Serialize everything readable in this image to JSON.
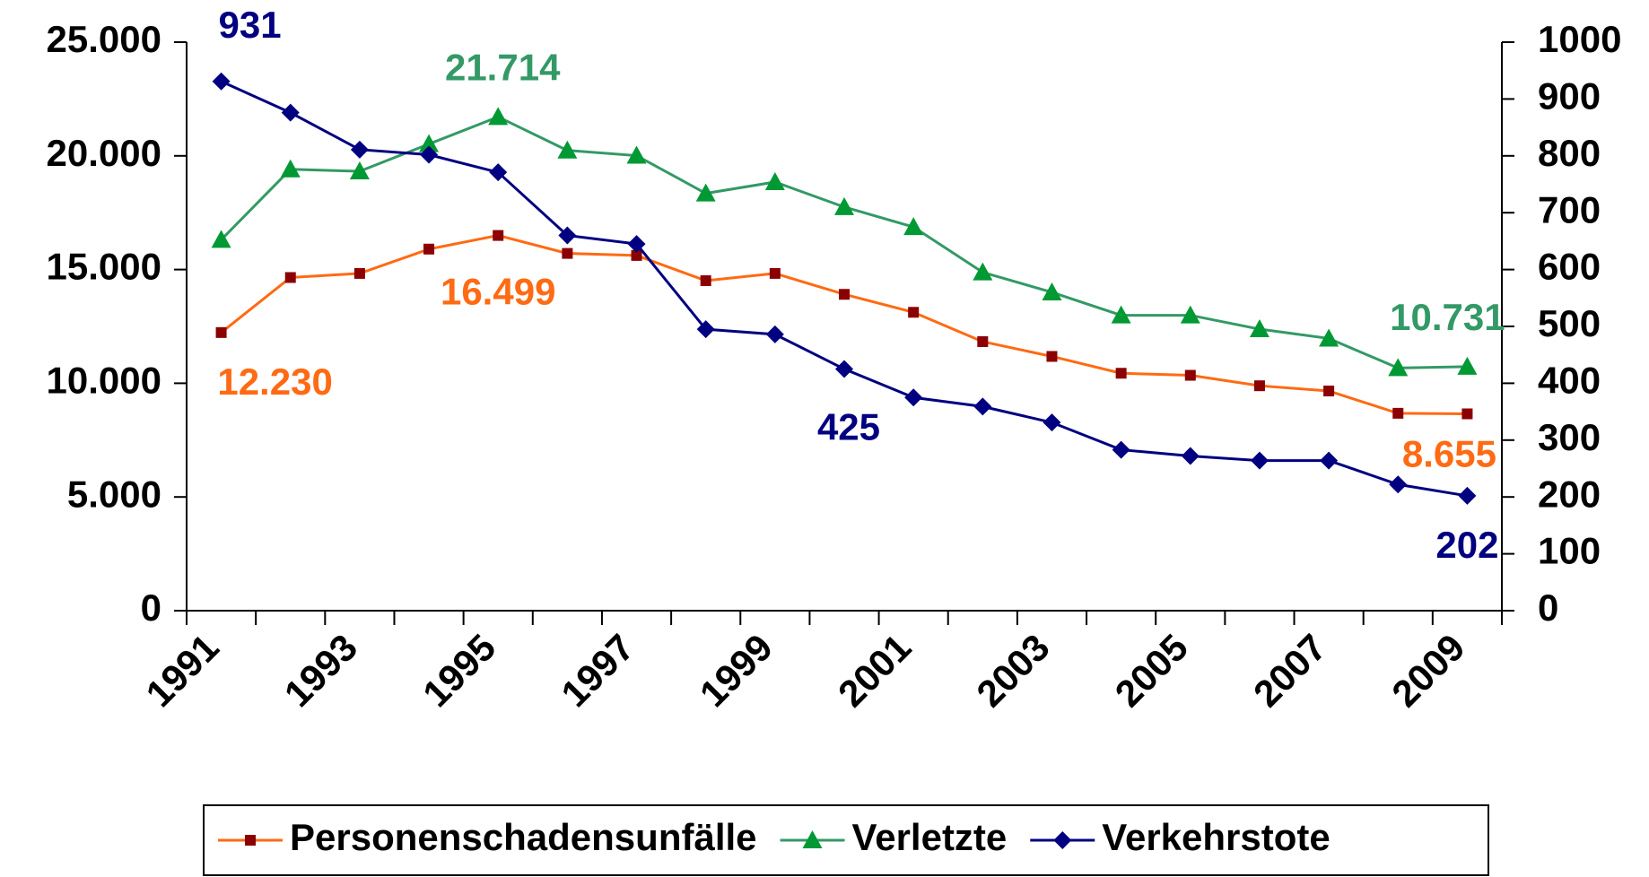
{
  "chart_data": {
    "type": "line",
    "categories": [
      "1991",
      null,
      "1993",
      null,
      "1995",
      null,
      "1997",
      null,
      "1999",
      null,
      "2001",
      null,
      "2003",
      null,
      "2005",
      null,
      "2007",
      null,
      "2009"
    ],
    "series": [
      {
        "name": "Personenschadensunfälle",
        "color": "#ff6a13",
        "marker_color": "#8b0000",
        "marker": "square",
        "values": [
          12230,
          14650,
          14830,
          15900,
          16499,
          15710,
          15620,
          14510,
          14830,
          13910,
          13120,
          11830,
          11180,
          10440,
          10350,
          9890,
          9660,
          8680,
          8655
        ],
        "value_labels": [
          "12.230",
          null,
          null,
          null,
          "16.499",
          null,
          null,
          null,
          null,
          null,
          null,
          null,
          null,
          null,
          null,
          null,
          null,
          null,
          "8.655"
        ]
      },
      {
        "name": "Verletzte",
        "color": "#339966",
        "marker_color": "#009933",
        "marker": "triangle",
        "values": [
          16310,
          19410,
          19320,
          20520,
          21714,
          20240,
          20010,
          18350,
          18850,
          17750,
          16870,
          14880,
          14000,
          12990,
          12990,
          12380,
          11970,
          10670,
          10731
        ],
        "value_labels": [
          null,
          null,
          null,
          null,
          "21.714",
          null,
          null,
          null,
          null,
          null,
          null,
          null,
          null,
          null,
          null,
          null,
          null,
          null,
          "10.731"
        ]
      },
      {
        "name": "Verkehrstote",
        "color": "#000080",
        "marker_color": "#000080",
        "marker": "diamond",
        "axis": "y2",
        "values": [
          931,
          876,
          811,
          802,
          771,
          660,
          645,
          495,
          486,
          425,
          375,
          359,
          331,
          283,
          272,
          264,
          264,
          222,
          202
        ],
        "value_labels": [
          "931",
          null,
          null,
          null,
          null,
          null,
          null,
          null,
          null,
          "425",
          null,
          null,
          null,
          null,
          null,
          null,
          null,
          null,
          "202"
        ]
      }
    ],
    "ylim": [
      0,
      25000
    ],
    "yticks": [
      0,
      {
        "value": 5000,
        "label": "5.000"
      },
      {
        "value": 10000,
        "label": "10.000"
      },
      {
        "value": 15000,
        "label": "15.000"
      },
      {
        "value": 20000,
        "label": "20.000"
      },
      {
        "value": 25000,
        "label": "25.000"
      }
    ],
    "y2lim": [
      0,
      1000
    ],
    "y2ticks": [
      0,
      100,
      200,
      300,
      400,
      500,
      600,
      700,
      800,
      900,
      1000
    ],
    "legend": "bottom"
  }
}
